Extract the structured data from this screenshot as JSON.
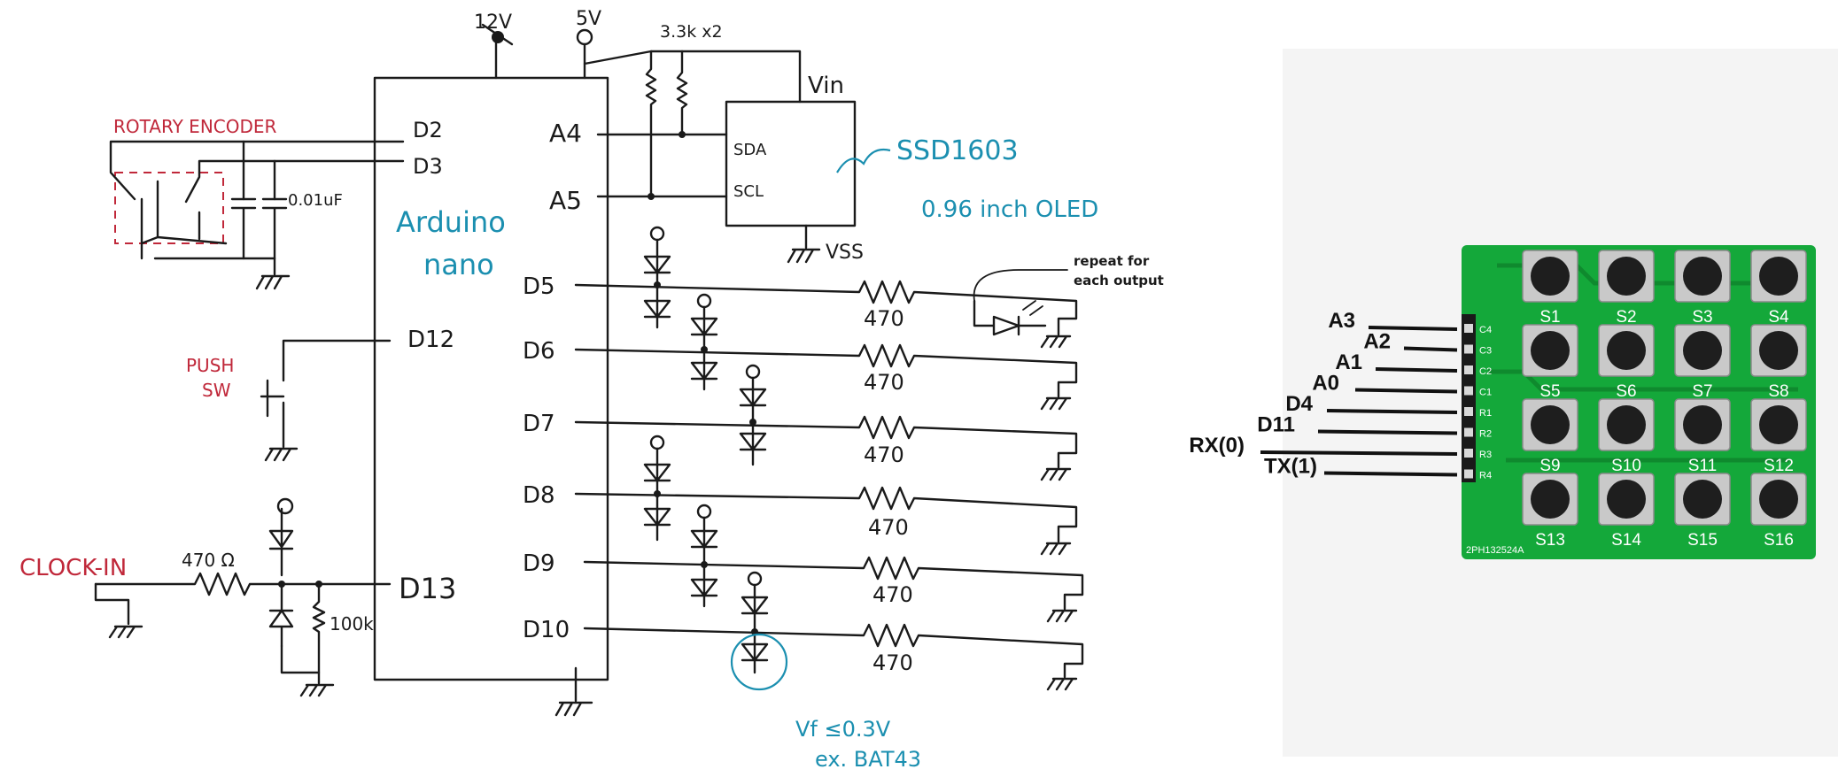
{
  "power": {
    "v12": "12V",
    "v5": "5V",
    "pullup": "3.3k x2",
    "vin": "Vin",
    "vss": "VSS"
  },
  "arduino": {
    "line1": "Arduino",
    "line2": "nano"
  },
  "pins_left": {
    "d2": "D2",
    "d3": "D3",
    "d12": "D12",
    "d13": "D13"
  },
  "pins_right": {
    "a4": "A4",
    "a5": "A5",
    "d5": "D5",
    "d6": "D6",
    "d7": "D7",
    "d8": "D8",
    "d9": "D9",
    "d10": "D10"
  },
  "oled": {
    "sda": "SDA",
    "scl": "SCL",
    "chip": "SSD1603",
    "desc": "0.96 inch OLED"
  },
  "encoder": {
    "label": "ROTARY ENCODER",
    "cap": "0.01uF"
  },
  "push": {
    "line1": "PUSH",
    "line2": "SW"
  },
  "clock": {
    "label": "CLOCK-IN",
    "r_in": "470 Ω",
    "r_pd": "100k"
  },
  "outputs": {
    "resistor": "470",
    "repeat_note_1": "repeat for",
    "repeat_note_2": "each output"
  },
  "diode_note": {
    "vf": "Vf ≤0.3V",
    "example": "ex. BAT43"
  },
  "keypad": {
    "pin_labels": [
      "C4",
      "C3",
      "C2",
      "C1",
      "R1",
      "R2",
      "R3",
      "R4"
    ],
    "wire_labels": [
      "A3",
      "A2",
      "A1",
      "A0",
      "D4",
      "D11",
      "RX(0)",
      "TX(1)"
    ],
    "switches": [
      "S1",
      "S2",
      "S3",
      "S4",
      "S5",
      "S6",
      "S7",
      "S8",
      "S9",
      "S10",
      "S11",
      "S12",
      "S13",
      "S14",
      "S15",
      "S16"
    ],
    "board_id": "2PH132524A",
    "colors": {
      "pcb": "#14a83a",
      "panel": "#f4f4f4"
    }
  },
  "colors": {
    "ink": "#1a1a1a",
    "encoder": "#c0283a",
    "oled_note": "#1b8fb0"
  }
}
